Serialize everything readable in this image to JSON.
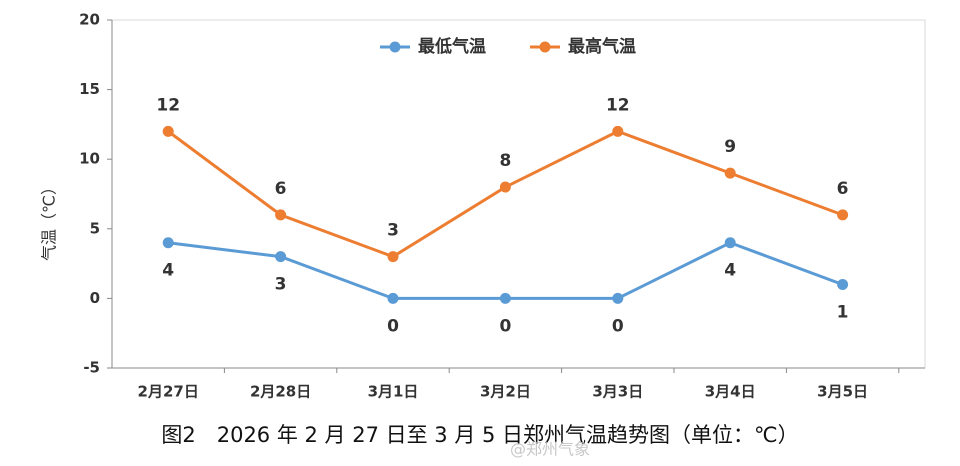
{
  "chart_data": {
    "type": "line",
    "categories": [
      "2月27日",
      "2月28日",
      "3月1日",
      "3月2日",
      "3月3日",
      "3月4日",
      "3月5日"
    ],
    "series": [
      {
        "name": "最低气温",
        "color": "#5b9bd5",
        "values": [
          4,
          3,
          0,
          0,
          0,
          4,
          1
        ]
      },
      {
        "name": "最高气温",
        "color": "#ed7d31",
        "values": [
          12,
          6,
          3,
          8,
          12,
          9,
          6
        ]
      }
    ],
    "y_label": "气温（℃）",
    "ylim": [
      -5,
      20
    ],
    "yticks": [
      -5,
      0,
      5,
      10,
      15,
      20
    ],
    "legend": "top",
    "data_labels": true,
    "caption": "图2　2026 年 2 月 27 日至 3 月 5 日郑州气温趋势图（单位：℃）",
    "watermark": "@郑州气象"
  }
}
